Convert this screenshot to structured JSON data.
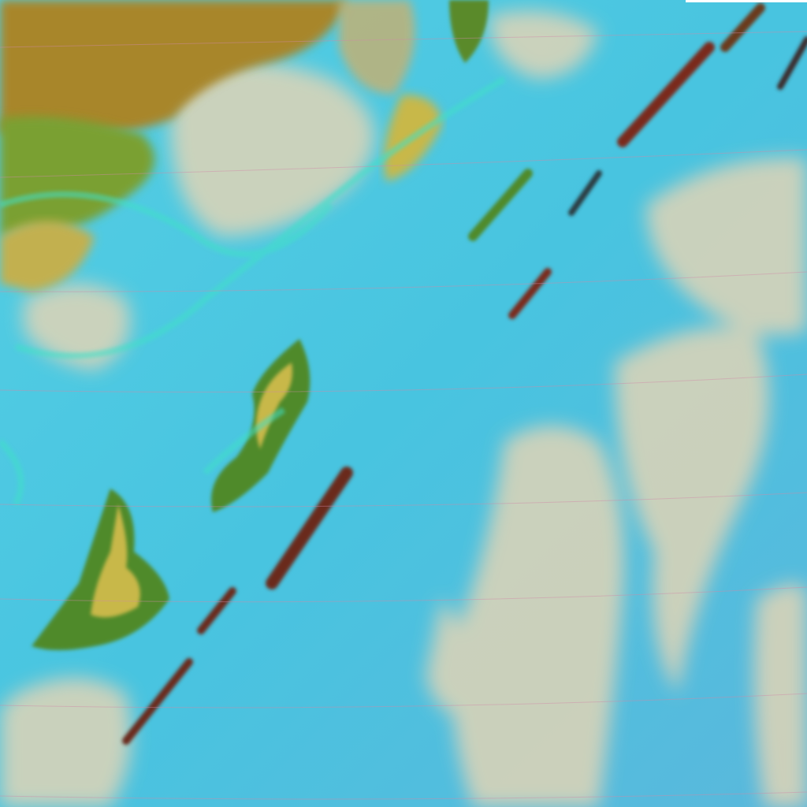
{
  "image": {
    "kind": "false-color satellite imagery",
    "colors": {
      "ocean": "#48c4e0",
      "ocean_light": "#6fd4e8",
      "land_dry": "#a8862a",
      "land_green": "#6f9a2a",
      "land_yellow": "#c8b848",
      "cloud_low": "#e2d6b4",
      "cloud_edge": "#3fe0c8",
      "shadow": "#1c3a4a",
      "mountain_red": "#7a2a1a",
      "graticule": "#d08aa8"
    }
  }
}
